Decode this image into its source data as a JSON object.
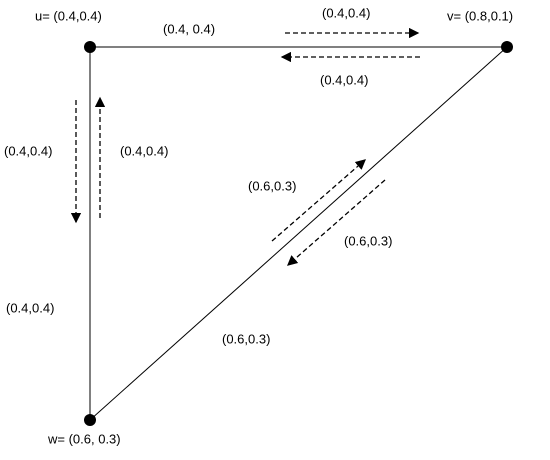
{
  "nodes": [
    {
      "label": "u= (0.4,0.4)"
    },
    {
      "label": "v= (0.8,0.1)"
    },
    {
      "label": "w= (0.6, 0.3)"
    }
  ],
  "edges": [
    {
      "label": "(0.4, 0.4)"
    },
    {
      "label": "(0.4,0.4)"
    },
    {
      "label": "(0.6,0.3)"
    }
  ],
  "flows": [
    {
      "label": "(0.4,0.4)"
    },
    {
      "label": "(0.4,0.4)"
    },
    {
      "label": "(0.4,0.4)"
    },
    {
      "label": "(0.4,0.4)"
    },
    {
      "label": "(0.6,0.3)"
    },
    {
      "label": "(0.6,0.3)"
    }
  ]
}
